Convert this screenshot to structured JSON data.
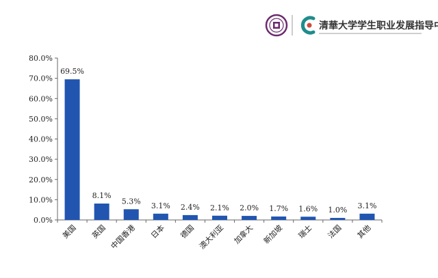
{
  "header": {
    "org_name": "清華大学学生职业发展指导中心"
  },
  "chart_data": {
    "type": "bar",
    "title": "",
    "xlabel": "",
    "ylabel": "",
    "ylim": [
      0,
      80
    ],
    "yticks": [
      "0.0%",
      "10.0%",
      "20.0%",
      "30.0%",
      "40.0%",
      "50.0%",
      "60.0%",
      "70.0%",
      "80.0%"
    ],
    "categories": [
      "美国",
      "英国",
      "中国香港",
      "日本",
      "德国",
      "澳大利亚",
      "加拿大",
      "新加坡",
      "瑞士",
      "法国",
      "其他"
    ],
    "values": [
      69.5,
      8.1,
      5.3,
      3.1,
      2.4,
      2.1,
      2.0,
      1.7,
      1.6,
      1.0,
      3.1
    ],
    "value_labels": [
      "69.5%",
      "8.1%",
      "5.3%",
      "3.1%",
      "2.4%",
      "2.1%",
      "2.0%",
      "1.7%",
      "1.6%",
      "1.0%",
      "3.1%"
    ],
    "bar_color": "#2155b0",
    "grid": false
  }
}
